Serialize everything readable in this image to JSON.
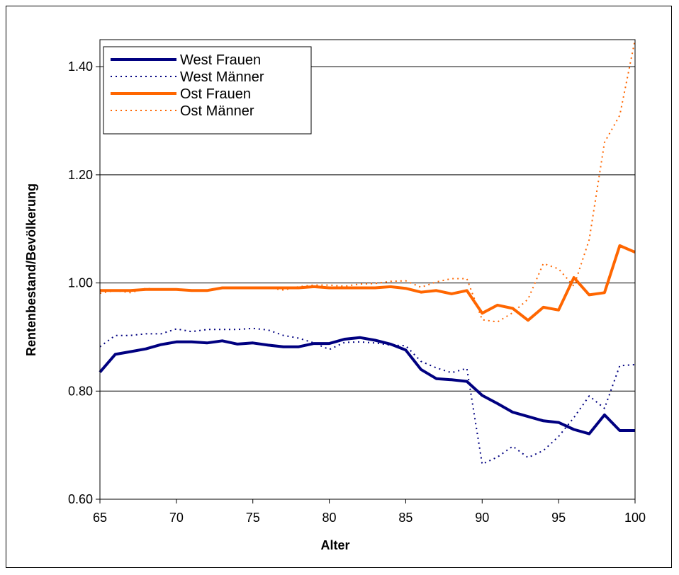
{
  "chart_data": {
    "type": "line",
    "title": "",
    "xlabel": "Alter",
    "ylabel": "Rentenbestand/Bevölkerung",
    "xlim": [
      65,
      100
    ],
    "ylim": [
      0.6,
      1.45
    ],
    "x_ticks": [
      65,
      70,
      75,
      80,
      85,
      90,
      95,
      100
    ],
    "x_tick_labels": [
      "65",
      "70",
      "75",
      "80",
      "85",
      "90",
      "95",
      "100"
    ],
    "y_ticks": [
      0.6,
      0.8,
      1.0,
      1.2,
      1.4
    ],
    "y_tick_labels": [
      "0.60",
      "0.80",
      "1.00",
      "1.20",
      "1.40"
    ],
    "grid": "horizontal",
    "legend_position": "top-left",
    "x": [
      65,
      66,
      67,
      68,
      69,
      70,
      71,
      72,
      73,
      74,
      75,
      76,
      77,
      78,
      79,
      80,
      81,
      82,
      83,
      84,
      85,
      86,
      87,
      88,
      89,
      90,
      91,
      92,
      93,
      94,
      95,
      96,
      97,
      98,
      99,
      100
    ],
    "series": [
      {
        "name": "West Frauen",
        "color": "#000080",
        "style": "solid",
        "values": [
          0.835,
          0.868,
          0.873,
          0.878,
          0.886,
          0.891,
          0.891,
          0.889,
          0.893,
          0.887,
          0.889,
          0.885,
          0.882,
          0.882,
          0.888,
          0.888,
          0.896,
          0.899,
          0.894,
          0.887,
          0.876,
          0.84,
          0.823,
          0.821,
          0.818,
          0.792,
          0.777,
          0.761,
          0.753,
          0.745,
          0.742,
          0.729,
          0.721,
          0.756,
          0.727,
          0.727
        ]
      },
      {
        "name": "West Männer",
        "color": "#000080",
        "style": "dotted",
        "values": [
          0.882,
          0.903,
          0.903,
          0.906,
          0.906,
          0.915,
          0.91,
          0.914,
          0.914,
          0.914,
          0.916,
          0.913,
          0.903,
          0.898,
          0.889,
          0.877,
          0.89,
          0.891,
          0.889,
          0.885,
          0.884,
          0.855,
          0.843,
          0.834,
          0.842,
          0.665,
          0.678,
          0.698,
          0.677,
          0.69,
          0.716,
          0.751,
          0.791,
          0.768,
          0.847,
          0.849
        ]
      },
      {
        "name": "Ost Frauen",
        "color": "#FF6600",
        "style": "solid",
        "values": [
          0.986,
          0.986,
          0.986,
          0.988,
          0.988,
          0.988,
          0.986,
          0.986,
          0.991,
          0.991,
          0.991,
          0.991,
          0.991,
          0.991,
          0.993,
          0.991,
          0.991,
          0.991,
          0.991,
          0.993,
          0.99,
          0.983,
          0.986,
          0.98,
          0.986,
          0.944,
          0.959,
          0.953,
          0.931,
          0.955,
          0.95,
          1.01,
          0.978,
          0.982,
          1.069,
          1.057
        ]
      },
      {
        "name": "Ost Männer",
        "color": "#FF6600",
        "style": "dotted",
        "values": [
          0.981,
          0.986,
          0.982,
          0.99,
          0.988,
          0.989,
          0.986,
          0.987,
          0.991,
          0.991,
          0.99,
          0.991,
          0.987,
          0.993,
          0.996,
          0.996,
          0.994,
          0.998,
          0.999,
          1.003,
          1.004,
          0.992,
          1.002,
          1.008,
          1.008,
          0.932,
          0.928,
          0.945,
          0.97,
          1.036,
          1.026,
          0.994,
          1.08,
          1.26,
          1.31,
          1.45
        ]
      }
    ]
  }
}
